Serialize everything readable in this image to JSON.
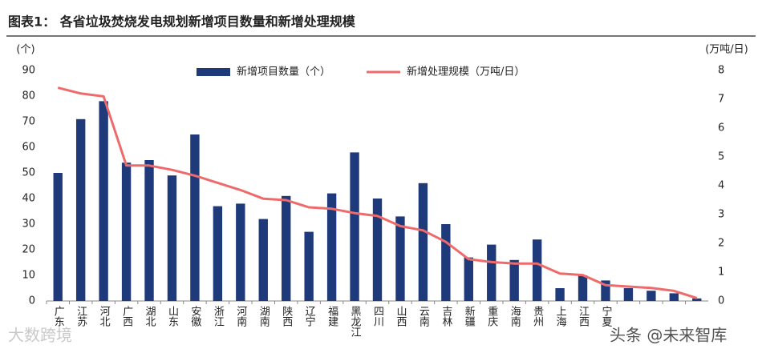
{
  "chart_data": {
    "type": "bar-line",
    "title": "图表1：  各省垃圾焚烧发电规划新增项目数量和新增处理规模",
    "y_unit": "(个)",
    "y2_unit": "(万吨/日)",
    "categories": [
      "广东",
      "江苏",
      "河北",
      "广西",
      "湖北",
      "山东",
      "安徽",
      "浙江",
      "河南",
      "湖南",
      "陕西",
      "辽宁",
      "福建",
      "黑龙江",
      "四川",
      "山西",
      "云南",
      "吉林",
      "新疆",
      "重庆",
      "海南",
      "贵州",
      "上海",
      "江西",
      "宁夏",
      null,
      null,
      null,
      null
    ],
    "series": [
      {
        "name": "新增项目数量（个）",
        "type": "bar",
        "color": "#1f3a7a",
        "values": [
          50,
          71,
          78,
          54,
          55,
          49,
          65,
          37,
          38,
          32,
          41,
          27,
          42,
          58,
          40,
          33,
          46,
          30,
          17,
          22,
          16,
          24,
          5,
          10,
          8,
          5,
          4,
          3,
          1
        ]
      },
      {
        "name": "新增处理规模（万吨/日）",
        "type": "line",
        "axis": "y2",
        "color": "#ef6b6b",
        "values": [
          7.4,
          7.2,
          7.1,
          4.7,
          4.7,
          4.55,
          4.35,
          4.1,
          3.85,
          3.55,
          3.5,
          3.25,
          3.2,
          3.05,
          2.95,
          2.6,
          2.45,
          2.05,
          1.45,
          1.35,
          1.3,
          1.3,
          0.95,
          0.9,
          0.55,
          0.5,
          0.45,
          0.35,
          0.1
        ]
      }
    ],
    "ylim": [
      0,
      90
    ],
    "yticks": [
      0,
      10,
      20,
      30,
      40,
      50,
      60,
      70,
      80,
      90
    ],
    "y2lim": [
      0,
      8
    ],
    "y2ticks": [
      0,
      1,
      2,
      3,
      4,
      5,
      6,
      7,
      8
    ],
    "grid": false
  },
  "watermarks": [
    "大数跨境",
    "头条 @未来智库"
  ]
}
